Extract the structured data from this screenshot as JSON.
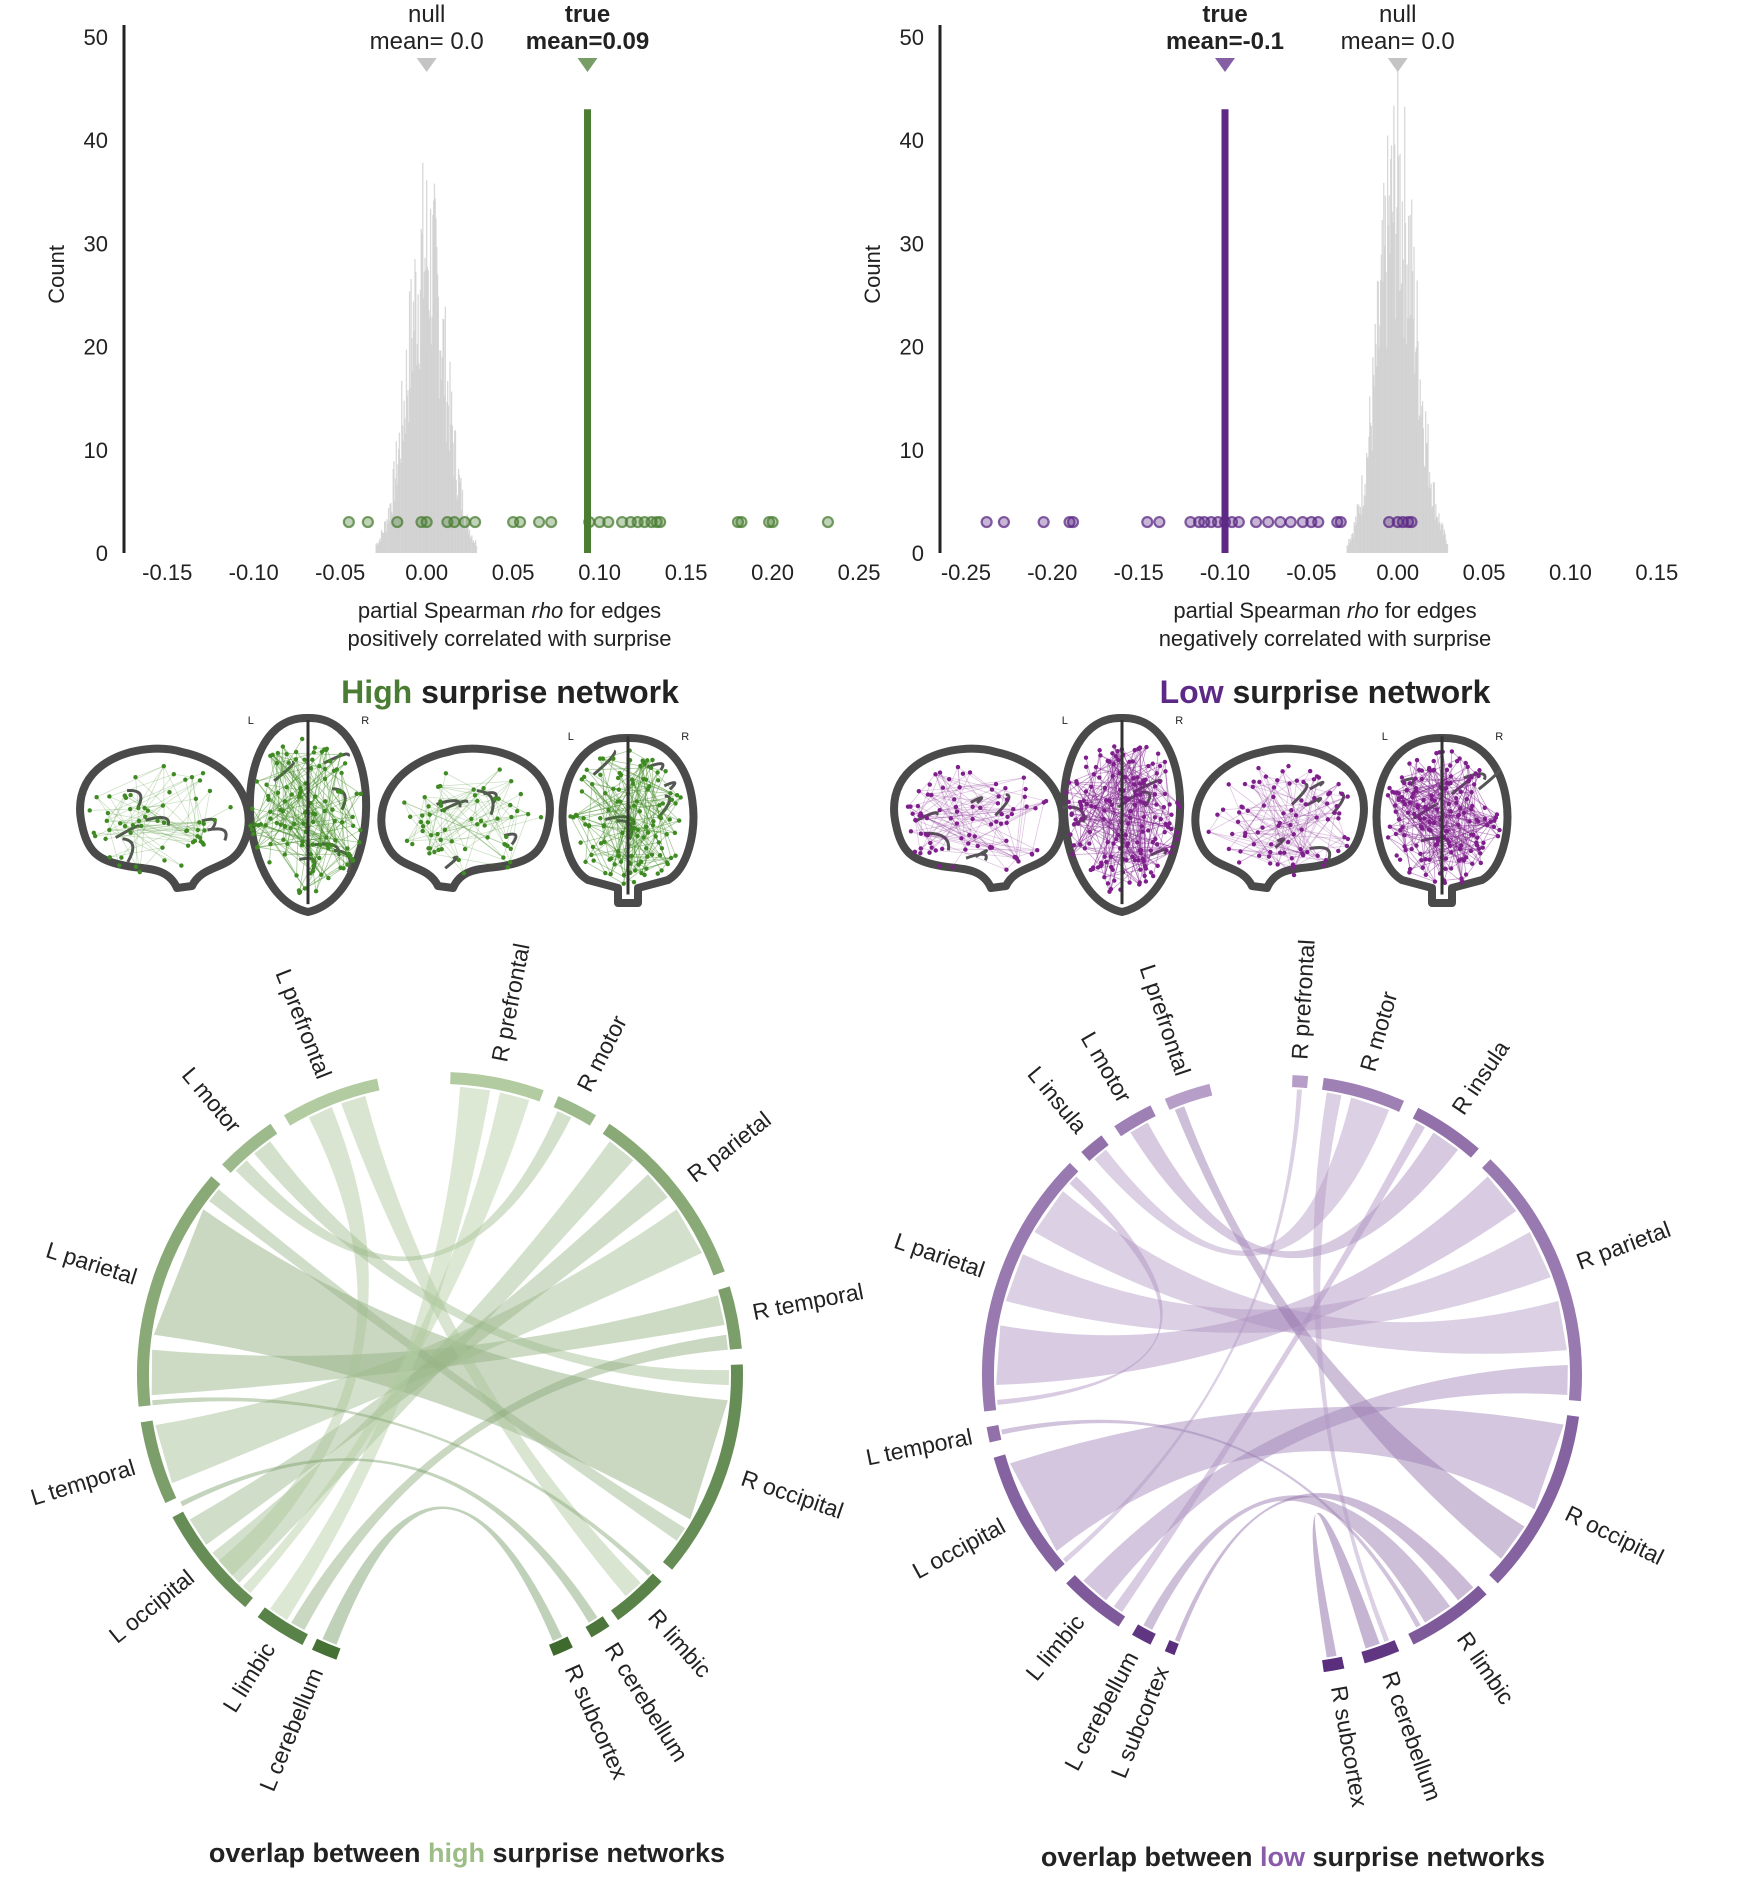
{
  "colors": {
    "high": "#4a7d33",
    "high_light": "#9dbd86",
    "low": "#5c2a86",
    "low_light": "#b89ac9",
    "null_gray": "#cfcfcf",
    "axis": "#222222"
  },
  "chart_data": [
    {
      "id": "hist-high",
      "type": "histogram",
      "ylabel": "Count",
      "xlabel_line1_pre": "partial Spearman ",
      "xlabel_line1_em": "rho",
      "xlabel_line1_post": " for edges",
      "xlabel_line2": "positively correlated with surprise",
      "xlim": [
        -0.175,
        0.265
      ],
      "ylim": [
        0,
        50
      ],
      "xticks": [
        -0.15,
        -0.1,
        -0.05,
        0.0,
        0.05,
        0.1,
        0.15,
        0.2,
        0.25
      ],
      "xtick_labels": [
        "-0.15",
        "-0.10",
        "-0.05",
        "0.00",
        "0.05",
        "0.10",
        "0.15",
        "0.20",
        "0.25"
      ],
      "yticks": [
        0,
        10,
        20,
        30,
        40,
        50
      ],
      "ytick_labels": [
        "0",
        "10",
        "20",
        "30",
        "40",
        "50"
      ],
      "null_mean_label": "null",
      "null_mean_value": "mean= 0.0",
      "null_mean": 0.0,
      "true_mean_label": "true",
      "true_mean_value": "mean=0.09",
      "true_mean": 0.093,
      "true_line_height": 43,
      "null_center": 0.0,
      "null_sd": 0.011,
      "null_peak": 36,
      "points_y": 3,
      "true_points": [
        -0.045,
        -0.034,
        -0.017,
        -0.003,
        0.0,
        0.012,
        0.016,
        0.022,
        0.028,
        0.05,
        0.054,
        0.065,
        0.072,
        0.094,
        0.1,
        0.105,
        0.113,
        0.118,
        0.122,
        0.126,
        0.13,
        0.133,
        0.135,
        0.18,
        0.182,
        0.198,
        0.2,
        0.232
      ]
    },
    {
      "id": "hist-low",
      "type": "histogram",
      "ylabel": "Count",
      "xlabel_line1_pre": "partial Spearman ",
      "xlabel_line1_em": "rho",
      "xlabel_line1_post": " for edges",
      "xlabel_line2": "negatively correlated with surprise",
      "xlim": [
        -0.265,
        0.175
      ],
      "ylim": [
        0,
        50
      ],
      "xticks": [
        -0.25,
        -0.2,
        -0.15,
        -0.1,
        -0.05,
        0.0,
        0.05,
        0.1,
        0.15
      ],
      "xtick_labels": [
        "-0.25",
        "-0.20",
        "-0.15",
        "-0.10",
        "-0.05",
        "0.00",
        "0.05",
        "0.10",
        "0.15"
      ],
      "yticks": [
        0,
        10,
        20,
        30,
        40,
        50
      ],
      "ytick_labels": [
        "0",
        "10",
        "20",
        "30",
        "40",
        "50"
      ],
      "null_mean_label": "null",
      "null_mean_value": "mean= 0.0",
      "null_mean": 0.0,
      "true_mean_label": "true",
      "true_mean_value": "mean=-0.1",
      "true_mean": -0.1,
      "true_line_height": 43,
      "null_center": 0.0,
      "null_sd": 0.011,
      "null_peak": 43,
      "points_y": 3,
      "true_points": [
        -0.238,
        -0.228,
        -0.205,
        -0.19,
        -0.188,
        -0.145,
        -0.138,
        -0.12,
        -0.115,
        -0.112,
        -0.108,
        -0.104,
        -0.1,
        -0.096,
        -0.092,
        -0.082,
        -0.075,
        -0.068,
        -0.062,
        -0.055,
        -0.05,
        -0.046,
        -0.035,
        -0.033,
        -0.005,
        0.0,
        0.003,
        0.006,
        0.008
      ]
    }
  ],
  "network_titles": {
    "high": {
      "accent": "High",
      "rest": " surprise network"
    },
    "low": {
      "accent": "Low",
      "rest": " surprise network"
    }
  },
  "brain_labels": {
    "left": "L",
    "right": "R"
  },
  "chord_high": {
    "title_pre": "overlap between ",
    "title_accent": "high",
    "title_post": " surprise networks",
    "regions": [
      {
        "name": "L prefrontal",
        "a0": -78,
        "a1": -59,
        "shade": 0.15
      },
      {
        "name": "L motor",
        "a0": -56,
        "a1": -44,
        "shade": 0.3
      },
      {
        "name": "L parietal",
        "a0": -41,
        "a1": 6,
        "shade": 0.45
      },
      {
        "name": "L temporal",
        "a0": 9,
        "a1": 25,
        "shade": 0.55
      },
      {
        "name": "L occipital",
        "a0": 28,
        "a1": 50,
        "shade": 0.7
      },
      {
        "name": "L limbic",
        "a0": 53,
        "a1": 63,
        "shade": 0.8
      },
      {
        "name": "L cerebellum",
        "a0": 65,
        "a1": 70,
        "shade": 0.95
      },
      {
        "name": "R subcortex",
        "a0": 112,
        "a1": 116,
        "shade": 1.0
      },
      {
        "name": "R cerebellum",
        "a0": 120,
        "a1": 124,
        "shade": 0.9
      },
      {
        "name": "R limbic",
        "a0": 126,
        "a1": 137,
        "shade": 0.8
      },
      {
        "name": "R occipital",
        "a0": 140,
        "a1": 182,
        "shade": 0.7
      },
      {
        "name": "R temporal",
        "a0": 185,
        "a1": 197,
        "shade": 0.55
      },
      {
        "name": "R parietal",
        "a0": 200,
        "a1": 236,
        "shade": 0.45
      },
      {
        "name": "R motor",
        "a0": 239,
        "a1": 247,
        "shade": 0.3
      },
      {
        "name": "R prefrontal",
        "a0": 250,
        "a1": 268,
        "shade": 0.15
      }
    ],
    "links": [
      {
        "a0": -35,
        "a1": -8,
        "b0": 150,
        "b1": 175,
        "shade": 0.45
      },
      {
        "a0": -5,
        "a1": 4,
        "b0": 190,
        "b1": 196,
        "shade": 0.4
      },
      {
        "a0": 10,
        "a1": 22,
        "b0": 205,
        "b1": 215,
        "shade": 0.3
      },
      {
        "a0": 30,
        "a1": 36,
        "b0": 218,
        "b1": 224,
        "shade": 0.35
      },
      {
        "a0": 38,
        "a1": 46,
        "b0": 228,
        "b1": 234,
        "shade": 0.3
      },
      {
        "a0": -75,
        "a1": -70,
        "b0": 130,
        "b1": 134,
        "shade": 0.2
      },
      {
        "a0": -68,
        "a1": -63,
        "b0": 40,
        "b1": 44,
        "shade": 0.2
      },
      {
        "a0": -54,
        "a1": -50,
        "b0": 178,
        "b1": 181,
        "shade": 0.3
      },
      {
        "a0": -48,
        "a1": -45,
        "b0": 243,
        "b1": 246,
        "shade": 0.3
      },
      {
        "a0": -40,
        "a1": -37,
        "b0": 145,
        "b1": 148,
        "shade": 0.35
      },
      {
        "a0": 47,
        "a1": 49,
        "b0": 252,
        "b1": 258,
        "shade": 0.15
      },
      {
        "a0": 54,
        "a1": 58,
        "b0": 260,
        "b1": 266,
        "shade": 0.15
      },
      {
        "a0": 66,
        "a1": 69,
        "b0": 113,
        "b1": 115,
        "shade": 0.6
      },
      {
        "a0": 59,
        "a1": 62,
        "b0": 185,
        "b1": 188,
        "shade": 0.45
      },
      {
        "a0": 26,
        "a1": 27,
        "b0": 121,
        "b1": 123,
        "shade": 0.55
      },
      {
        "a0": 5,
        "a1": 6,
        "b0": 136,
        "b1": 137,
        "shade": 0.5
      }
    ]
  },
  "chord_low": {
    "title_pre": "overlap between ",
    "title_accent": "low",
    "title_post": " surprise networks",
    "regions": [
      {
        "name": "L prefrontal",
        "a0": -76,
        "a1": -67,
        "shade": 0.25
      },
      {
        "name": "L motor",
        "a0": -64,
        "a1": -56,
        "shade": 0.45
      },
      {
        "name": "L insula",
        "a0": -53,
        "a1": -48,
        "shade": 0.55
      },
      {
        "name": "L parietal",
        "a0": -45,
        "a1": 7,
        "shade": 0.5
      },
      {
        "name": "L temporal",
        "a0": 10,
        "a1": 13,
        "shade": 0.55
      },
      {
        "name": "L occipital",
        "a0": 16,
        "a1": 41,
        "shade": 0.65
      },
      {
        "name": "L limbic",
        "a0": 44,
        "a1": 57,
        "shade": 0.7
      },
      {
        "name": "L cerebellum",
        "a0": 60,
        "a1": 64,
        "shade": 0.95
      },
      {
        "name": "L subcortex",
        "a0": 67,
        "a1": 69,
        "shade": 1.0
      },
      {
        "name": "R subcortex",
        "a0": 98,
        "a1": 102,
        "shade": 1.0
      },
      {
        "name": "R cerebellum",
        "a0": 106,
        "a1": 113,
        "shade": 0.95
      },
      {
        "name": "R limbic",
        "a0": 116,
        "a1": 133,
        "shade": 0.7
      },
      {
        "name": "R occipital",
        "a0": 136,
        "a1": 172,
        "shade": 0.65
      },
      {
        "name": "R parietal",
        "a0": 175,
        "a1": 226,
        "shade": 0.5
      },
      {
        "name": "R insula",
        "a0": 229,
        "a1": 243,
        "shade": 0.55
      },
      {
        "name": "R motor",
        "a0": 246,
        "a1": 262,
        "shade": 0.45
      },
      {
        "name": "R prefrontal",
        "a0": 265,
        "a1": 268,
        "shade": 0.25
      }
    ],
    "links": [
      {
        "a0": 18,
        "a1": 38,
        "b0": 152,
        "b1": 170,
        "shade": 0.45
      },
      {
        "a0": -40,
        "a1": -30,
        "b0": 185,
        "b1": 195,
        "shade": 0.3
      },
      {
        "a0": -25,
        "a1": -15,
        "b0": 200,
        "b1": 210,
        "shade": 0.3
      },
      {
        "a0": -10,
        "a1": 2,
        "b0": 215,
        "b1": 224,
        "shade": 0.35
      },
      {
        "a0": -70,
        "a1": -68,
        "b0": 140,
        "b1": 148,
        "shade": 0.55
      },
      {
        "a0": -62,
        "a1": -58,
        "b0": 232,
        "b1": 238,
        "shade": 0.4
      },
      {
        "a0": -52,
        "a1": -49,
        "b0": 248,
        "b1": 256,
        "shade": 0.3
      },
      {
        "a0": 46,
        "a1": 52,
        "b0": 176,
        "b1": 182,
        "shade": 0.45
      },
      {
        "a0": 54,
        "a1": 56,
        "b0": 240,
        "b1": 242,
        "shade": 0.35
      },
      {
        "a0": 61,
        "a1": 63,
        "b0": 120,
        "b1": 126,
        "shade": 0.55
      },
      {
        "a0": 68,
        "a1": 69,
        "b0": 128,
        "b1": 132,
        "shade": 0.6
      },
      {
        "a0": 99,
        "a1": 101,
        "b0": 107,
        "b1": 110,
        "shade": 0.7
      },
      {
        "a0": 111,
        "a1": 112,
        "b0": 258,
        "b1": 261,
        "shade": 0.3
      },
      {
        "a0": 11,
        "a1": 12,
        "b0": 118,
        "b1": 119,
        "shade": 0.5
      },
      {
        "a0": -44,
        "a1": -42,
        "b0": 5,
        "b1": 6,
        "shade": 0.35
      },
      {
        "a0": 40,
        "a1": 41,
        "b0": 266,
        "b1": 267,
        "shade": 0.3
      }
    ]
  }
}
